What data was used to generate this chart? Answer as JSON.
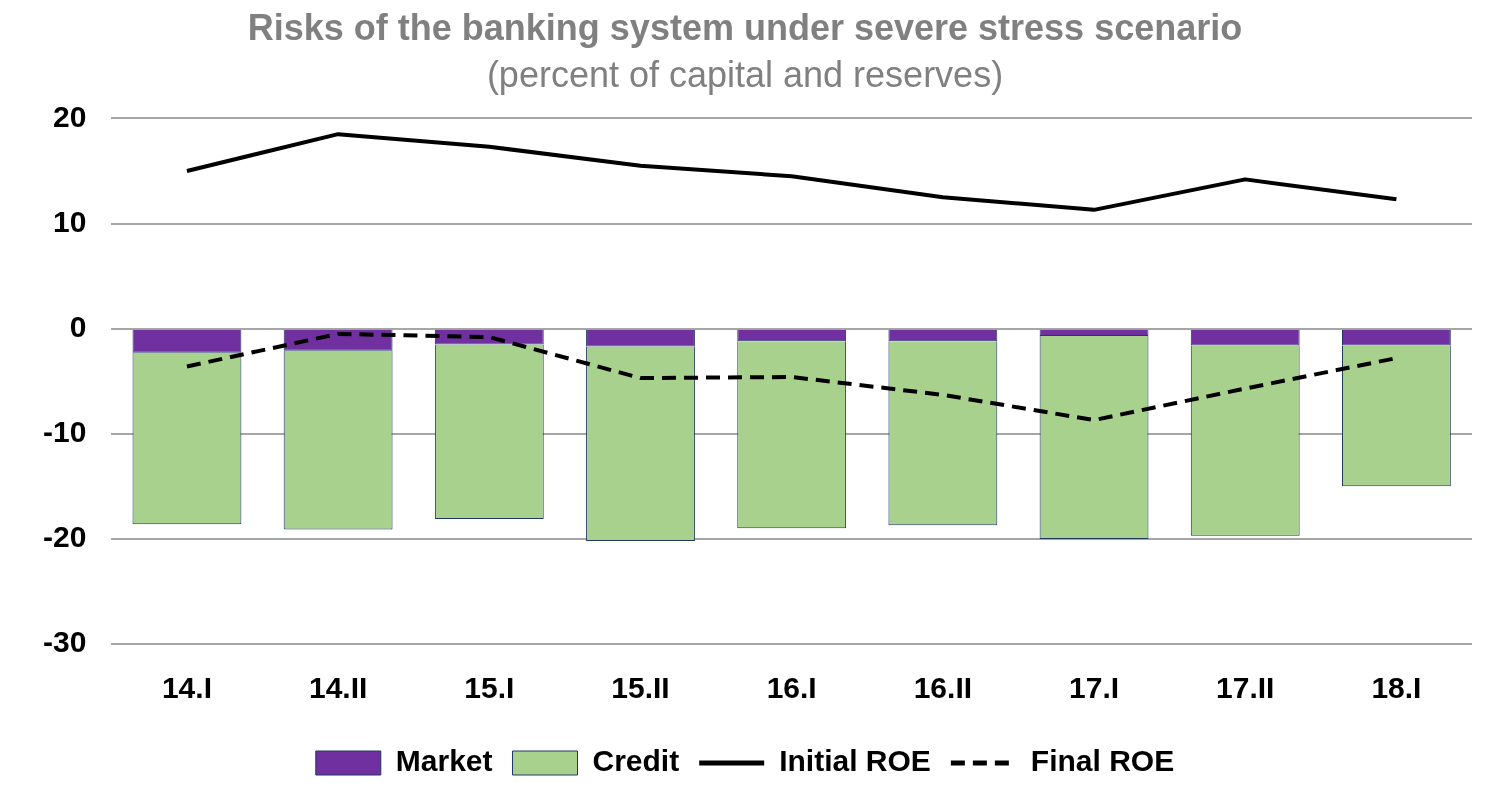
{
  "chart_data": {
    "type": "bar",
    "title": "Risks of the banking system under severe stress scenario",
    "subtitle": "(percent of capital and reserves)",
    "categories": [
      "14.I",
      "14.II",
      "15.I",
      "15.II",
      "16.I",
      "16.II",
      "17.I",
      "17.II",
      "18.I"
    ],
    "series": [
      {
        "name": "Market",
        "color": "#7030a0",
        "values": [
          -2.3,
          -2.1,
          -1.5,
          -1.7,
          -1.2,
          -1.2,
          -0.7,
          -1.6,
          -1.6
        ]
      },
      {
        "name": "Credit",
        "color": "#a9d18e",
        "values": [
          -16.3,
          -17.0,
          -16.6,
          -18.5,
          -17.8,
          -17.5,
          -19.3,
          -18.1,
          -13.4
        ]
      },
      {
        "name": "Initial ROE",
        "type": "line",
        "color": "#000000",
        "line_style": "solid",
        "values": [
          15.0,
          18.5,
          17.3,
          15.5,
          14.5,
          12.5,
          11.3,
          14.2,
          12.3
        ]
      },
      {
        "name": "Final ROE",
        "type": "line",
        "color": "#000000",
        "line_style": "dashed",
        "values": [
          -3.6,
          -0.5,
          -0.8,
          -4.7,
          -4.6,
          -6.3,
          -8.7,
          -5.7,
          -2.8
        ]
      }
    ],
    "stacked": true,
    "ylim": [
      -30,
      20
    ],
    "yticks": [
      -30,
      -20,
      -10,
      0,
      10,
      20
    ],
    "grid": "y",
    "legend": "bottom",
    "marker": "none"
  }
}
